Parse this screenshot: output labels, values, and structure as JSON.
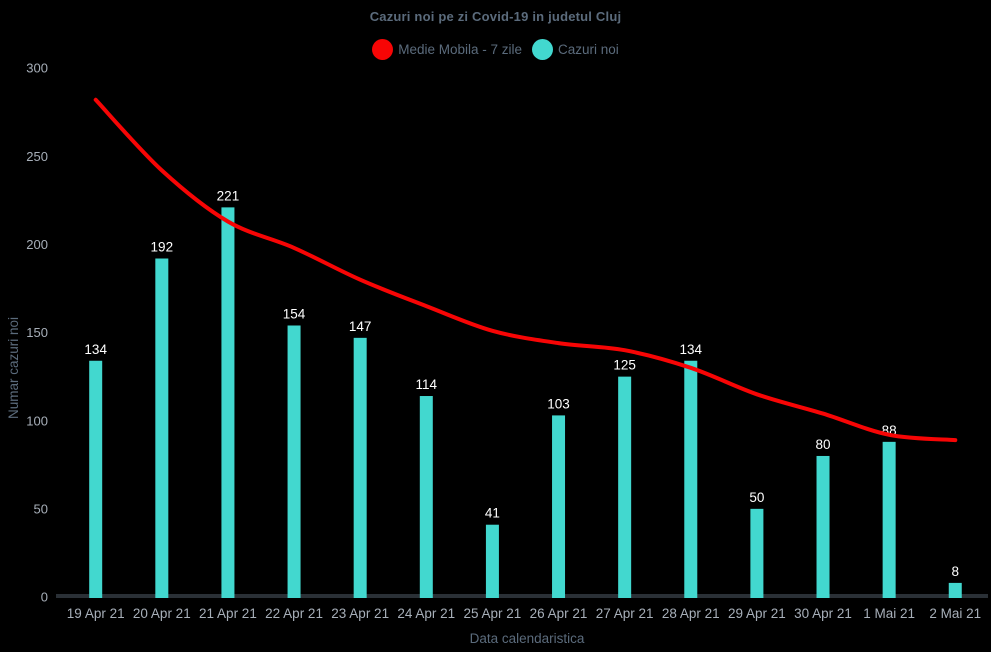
{
  "title": "Cazuri noi pe zi Covid-19 in judetul Cluj",
  "legend": {
    "items": [
      {
        "label": "Medie Mobila - 7 zile",
        "color": "#f70505"
      },
      {
        "label": "Cazuri noi",
        "color": "#42d8cf"
      }
    ]
  },
  "chart_data": {
    "type": "bar",
    "title": "Cazuri noi pe zi Covid-19 in judetul Cluj",
    "xlabel": "Data calendaristica",
    "ylabel": "Numar cazuri noi",
    "ylim": [
      0,
      300
    ],
    "yticks": [
      0,
      50,
      100,
      150,
      200,
      250,
      300
    ],
    "grid": false,
    "legend_position": "top-center",
    "background": "#000000",
    "categories": [
      "19 Apr 21",
      "20 Apr 21",
      "21 Apr 21",
      "22 Apr 21",
      "23 Apr 21",
      "24 Apr 21",
      "25 Apr 21",
      "26 Apr 21",
      "27 Apr 21",
      "28 Apr 21",
      "29 Apr 21",
      "30 Apr 21",
      "1 Mai 21",
      "2 Mai 21"
    ],
    "series": [
      {
        "name": "Cazuri noi",
        "type": "bar",
        "color": "#42d8cf",
        "values": [
          134,
          192,
          221,
          154,
          147,
          114,
          41,
          103,
          125,
          134,
          50,
          80,
          88,
          8
        ]
      },
      {
        "name": "Medie Mobila - 7 zile",
        "type": "line",
        "color": "#f70505",
        "values": [
          282,
          242,
          213,
          198,
          180,
          165,
          151,
          144,
          140,
          130,
          115,
          104,
          92,
          89
        ]
      }
    ]
  },
  "colors": {
    "background": "#000000",
    "title_text": "#5b6b7c",
    "axis_title_text": "#5b6b7c",
    "tick_text": "#a7afb9",
    "value_label_text": "#ffffff",
    "axis_line": "#2a3036"
  }
}
